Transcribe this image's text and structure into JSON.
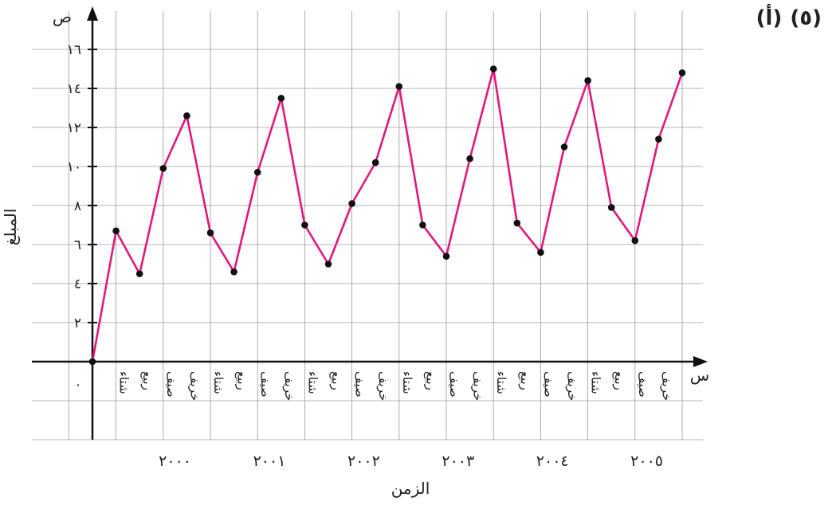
{
  "problem": {
    "number": "(٥)",
    "part": "(أ)"
  },
  "chart_data": {
    "type": "line",
    "title": "",
    "xlabel": "الزمن",
    "ylabel": "المبلغ",
    "x_axis_symbol": "س",
    "y_axis_symbol": "ص",
    "origin_label": "٠",
    "ylim": [
      -8,
      18
    ],
    "y_ticks": [
      2,
      4,
      6,
      8,
      10,
      12,
      14,
      16
    ],
    "y_tick_labels": [
      "٢",
      "٤",
      "٦",
      "٨",
      "١٠",
      "١٢",
      "١٤",
      "١٦"
    ],
    "grid": true,
    "line_color": "#e2187f",
    "point_color": "#111111",
    "categories": [
      "شتاء",
      "ربيع",
      "صيف",
      "خريف",
      "شتاء",
      "ربيع",
      "صيف",
      "خريف",
      "شتاء",
      "ربيع",
      "صيف",
      "خريف",
      "شتاء",
      "ربيع",
      "صيف",
      "خريف",
      "شتاء",
      "ربيع",
      "صيف",
      "خريف",
      "شتاء",
      "ربيع",
      "صيف",
      "خريف"
    ],
    "years": [
      "٢٠٠٠",
      "٢٠٠١",
      "٢٠٠٢",
      "٢٠٠٣",
      "٢٠٠٤",
      "٢٠٠٥"
    ],
    "series": [
      {
        "x": [
          0,
          1,
          2,
          3,
          4,
          5,
          6,
          7,
          8,
          9,
          10,
          11,
          12,
          13,
          14,
          15,
          16,
          17,
          18,
          19,
          20,
          21,
          22,
          23,
          24,
          25
        ],
        "values": [
          0,
          6.7,
          4.5,
          9.9,
          12.6,
          6.6,
          4.6,
          9.7,
          13.5,
          7,
          5,
          8.1,
          10.2,
          14.1,
          7,
          5.4,
          10.4,
          15,
          7.1,
          5.6,
          11,
          14.4,
          7.9,
          6.2,
          11.4,
          14.8
        ]
      }
    ]
  }
}
